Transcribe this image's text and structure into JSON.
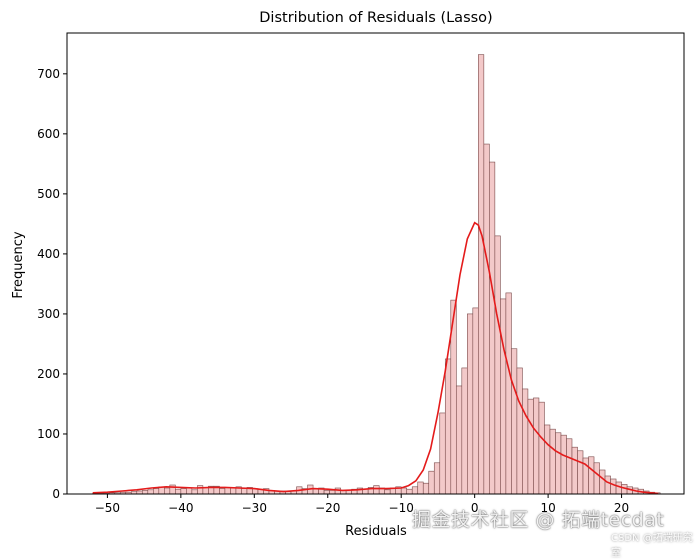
{
  "chart_data": {
    "type": "bar",
    "title": "Distribution of Residuals (Lasso)",
    "xlabel": "Residuals",
    "ylabel": "Frequency",
    "xlim": [
      -55.5,
      28.5
    ],
    "ylim": [
      0,
      768
    ],
    "xticks": [
      -50,
      -40,
      -30,
      -20,
      -10,
      0,
      10,
      20
    ],
    "yticks": [
      0,
      100,
      200,
      300,
      400,
      500,
      600,
      700
    ],
    "bin_width": 0.75,
    "bins": [
      [
        -52.0,
        1
      ],
      [
        -51.25,
        1
      ],
      [
        -50.5,
        1
      ],
      [
        -49.75,
        2
      ],
      [
        -49.0,
        2
      ],
      [
        -48.25,
        3
      ],
      [
        -47.5,
        3
      ],
      [
        -46.75,
        4
      ],
      [
        -46.0,
        5
      ],
      [
        -45.25,
        6
      ],
      [
        -44.5,
        7
      ],
      [
        -43.75,
        9
      ],
      [
        -43.0,
        12
      ],
      [
        -42.25,
        10
      ],
      [
        -41.5,
        15
      ],
      [
        -40.75,
        8
      ],
      [
        -40.0,
        9
      ],
      [
        -39.25,
        10
      ],
      [
        -38.5,
        7
      ],
      [
        -37.75,
        14
      ],
      [
        -37.0,
        11
      ],
      [
        -36.25,
        13
      ],
      [
        -35.5,
        13
      ],
      [
        -34.75,
        9
      ],
      [
        -34.0,
        11
      ],
      [
        -33.25,
        10
      ],
      [
        -32.5,
        12
      ],
      [
        -31.75,
        9
      ],
      [
        -31.0,
        11
      ],
      [
        -30.25,
        9
      ],
      [
        -29.5,
        8
      ],
      [
        -28.75,
        9
      ],
      [
        -28.0,
        6
      ],
      [
        -27.25,
        5
      ],
      [
        -26.5,
        5
      ],
      [
        -25.75,
        4
      ],
      [
        -25.0,
        5
      ],
      [
        -24.25,
        12
      ],
      [
        -23.5,
        9
      ],
      [
        -22.75,
        15
      ],
      [
        -22.0,
        8
      ],
      [
        -21.25,
        10
      ],
      [
        -20.5,
        6
      ],
      [
        -19.75,
        6
      ],
      [
        -19.0,
        10
      ],
      [
        -18.25,
        6
      ],
      [
        -17.5,
        7
      ],
      [
        -16.75,
        8
      ],
      [
        -16.0,
        10
      ],
      [
        -15.25,
        8
      ],
      [
        -14.5,
        11
      ],
      [
        -13.75,
        14
      ],
      [
        -13.0,
        10
      ],
      [
        -12.25,
        7
      ],
      [
        -11.5,
        10
      ],
      [
        -10.75,
        12
      ],
      [
        -10.0,
        10
      ],
      [
        -9.25,
        8
      ],
      [
        -8.5,
        12
      ],
      [
        -7.75,
        20
      ],
      [
        -7.0,
        18
      ],
      [
        -6.25,
        38
      ],
      [
        -5.5,
        52
      ],
      [
        -4.75,
        135
      ],
      [
        -4.0,
        225
      ],
      [
        -3.25,
        323
      ],
      [
        -2.5,
        180
      ],
      [
        -1.75,
        210
      ],
      [
        -1.0,
        300
      ],
      [
        -0.25,
        310
      ],
      [
        0.5,
        732
      ],
      [
        1.25,
        583
      ],
      [
        2.0,
        553
      ],
      [
        2.75,
        430
      ],
      [
        3.5,
        325
      ],
      [
        4.25,
        335
      ],
      [
        5.0,
        242
      ],
      [
        5.75,
        210
      ],
      [
        6.5,
        175
      ],
      [
        7.25,
        158
      ],
      [
        8.0,
        160
      ],
      [
        8.75,
        153
      ],
      [
        9.5,
        115
      ],
      [
        10.25,
        108
      ],
      [
        11.0,
        102
      ],
      [
        11.75,
        98
      ],
      [
        12.5,
        92
      ],
      [
        13.25,
        78
      ],
      [
        14.0,
        72
      ],
      [
        14.75,
        60
      ],
      [
        15.5,
        62
      ],
      [
        16.25,
        52
      ],
      [
        17.0,
        40
      ],
      [
        17.75,
        30
      ],
      [
        18.5,
        25
      ],
      [
        19.25,
        20
      ],
      [
        20.0,
        16
      ],
      [
        20.75,
        12
      ],
      [
        21.5,
        10
      ],
      [
        22.25,
        8
      ],
      [
        23.0,
        5
      ],
      [
        23.75,
        3
      ],
      [
        24.5,
        2
      ]
    ],
    "kde": [
      [
        -52,
        2
      ],
      [
        -50,
        3
      ],
      [
        -48,
        5
      ],
      [
        -46,
        7
      ],
      [
        -44,
        10
      ],
      [
        -42,
        12
      ],
      [
        -40,
        11
      ],
      [
        -38,
        10
      ],
      [
        -36,
        11
      ],
      [
        -34,
        11
      ],
      [
        -32,
        10
      ],
      [
        -30,
        9
      ],
      [
        -28,
        6
      ],
      [
        -26,
        4
      ],
      [
        -24,
        6
      ],
      [
        -22,
        9
      ],
      [
        -20,
        8
      ],
      [
        -18,
        6
      ],
      [
        -16,
        7
      ],
      [
        -14,
        9
      ],
      [
        -12,
        9
      ],
      [
        -10,
        10
      ],
      [
        -9,
        14
      ],
      [
        -8,
        22
      ],
      [
        -7,
        40
      ],
      [
        -6,
        75
      ],
      [
        -5,
        135
      ],
      [
        -4,
        205
      ],
      [
        -3,
        285
      ],
      [
        -2,
        365
      ],
      [
        -1,
        425
      ],
      [
        0,
        452
      ],
      [
        0.5,
        448
      ],
      [
        1,
        430
      ],
      [
        2,
        370
      ],
      [
        3,
        300
      ],
      [
        4,
        240
      ],
      [
        5,
        190
      ],
      [
        6,
        155
      ],
      [
        7,
        130
      ],
      [
        8,
        110
      ],
      [
        9,
        95
      ],
      [
        10,
        82
      ],
      [
        11,
        72
      ],
      [
        12,
        65
      ],
      [
        13,
        60
      ],
      [
        14,
        55
      ],
      [
        15,
        50
      ],
      [
        16,
        40
      ],
      [
        17,
        30
      ],
      [
        18,
        20
      ],
      [
        19,
        15
      ],
      [
        20,
        11
      ],
      [
        21,
        8
      ],
      [
        22,
        5
      ],
      [
        23,
        3
      ],
      [
        24,
        2
      ],
      [
        25,
        1
      ]
    ],
    "bar_fill": "#f3c9c9",
    "bar_edge": "#7a4a4a",
    "kde_color": "#e41b1b"
  },
  "watermark": {
    "main": "掘金技术社区 @ 拓端tecdat",
    "sub": "CSDN @拓端研究室"
  }
}
